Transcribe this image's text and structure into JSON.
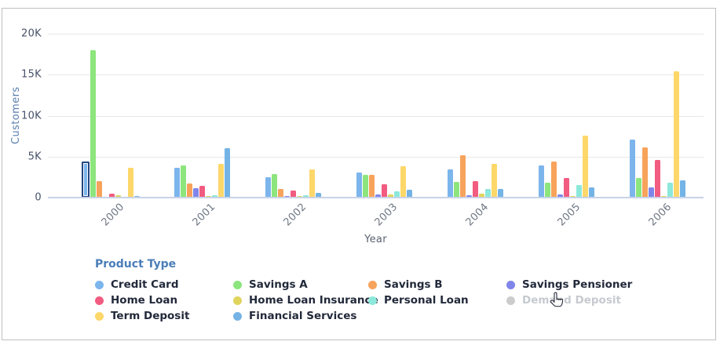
{
  "chart_data": {
    "type": "bar",
    "title": "",
    "xlabel": "Year",
    "ylabel": "Customers",
    "ylim": [
      0,
      20000
    ],
    "yticks": [
      {
        "label": "0",
        "value": 0
      },
      {
        "label": "5K",
        "value": 5000
      },
      {
        "label": "10K",
        "value": 10000
      },
      {
        "label": "15K",
        "value": 15000
      },
      {
        "label": "20K",
        "value": 20000
      }
    ],
    "categories": [
      "2000",
      "2001",
      "2002",
      "2003",
      "2004",
      "2005",
      "2006"
    ],
    "series": [
      {
        "name": "Credit Card",
        "color": "#7cb5ec",
        "enabled": true,
        "values": [
          4400,
          3600,
          2500,
          3100,
          3450,
          3900,
          7100
        ]
      },
      {
        "name": "Savings A",
        "color": "#8de57d",
        "enabled": true,
        "values": [
          18000,
          3950,
          2900,
          2750,
          1950,
          1850,
          2400
        ]
      },
      {
        "name": "Savings B",
        "color": "#f7a35c",
        "enabled": true,
        "values": [
          2000,
          1700,
          1100,
          2750,
          5150,
          4450,
          6150
        ]
      },
      {
        "name": "Savings Pensioner",
        "color": "#8085e9",
        "enabled": true,
        "values": [
          0,
          1150,
          200,
          400,
          250,
          350,
          1250
        ]
      },
      {
        "name": "Home Loan",
        "color": "#f15c80",
        "enabled": true,
        "values": [
          450,
          1450,
          900,
          1600,
          2050,
          2400,
          4550
        ]
      },
      {
        "name": "Home Loan Insurance",
        "color": "#e0d45c",
        "enabled": true,
        "values": [
          250,
          150,
          200,
          400,
          450,
          200,
          150
        ]
      },
      {
        "name": "Personal Loan",
        "color": "#8ce8da",
        "enabled": true,
        "values": [
          0,
          250,
          250,
          800,
          1050,
          1550,
          1850
        ]
      },
      {
        "name": "Term Deposit",
        "color": "#fdd76a",
        "enabled": true,
        "values": [
          3650,
          4150,
          3450,
          3850,
          4150,
          7600,
          15400
        ]
      },
      {
        "name": "Financial Services",
        "color": "#74b3e5",
        "enabled": true,
        "values": [
          150,
          6000,
          550,
          950,
          1050,
          1250,
          2100
        ]
      },
      {
        "name": "Demand Deposit",
        "color": "#cccccc",
        "enabled": false,
        "values": null
      }
    ],
    "highlight": {
      "series": "Credit Card",
      "category": "2000"
    },
    "legend_position": "bottom",
    "grid": true
  },
  "legend": {
    "title": "Product Type",
    "order": [
      "Credit Card",
      "Savings A",
      "Savings B",
      "Savings Pensioner",
      "Home Loan",
      "Home Loan Insurance",
      "Personal Loan",
      "Demand Deposit",
      "Term Deposit",
      "Financial Services"
    ]
  },
  "cursor": {
    "icon": "hand-pointer"
  }
}
